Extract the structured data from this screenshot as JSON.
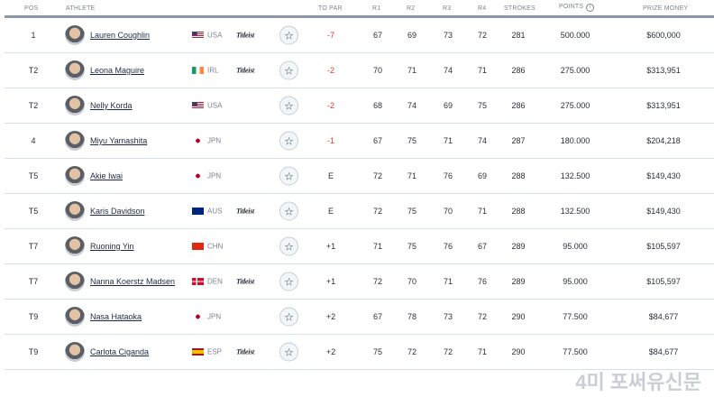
{
  "headers": {
    "pos": "POS",
    "athlete": "ATHLETE",
    "topar": "TO PAR",
    "r1": "R1",
    "r2": "R2",
    "r3": "R3",
    "r4": "R4",
    "strokes": "STROKES",
    "points": "POINTS",
    "prize": "PRIZE MONEY",
    "info_icon": "i"
  },
  "colors": {
    "negative": "#e0342c",
    "divider": "#8d97a6"
  },
  "star_icon": "☆",
  "rows": [
    {
      "pos": "1",
      "name": "Lauren Coughlin",
      "country": "USA",
      "brand": "Titleist",
      "topar": "-7",
      "r1": "67",
      "r2": "69",
      "r3": "73",
      "r4": "72",
      "strokes": "281",
      "points": "500.000",
      "prize": "$600,000"
    },
    {
      "pos": "T2",
      "name": "Leona Maguire",
      "country": "IRL",
      "brand": "Titleist",
      "topar": "-2",
      "r1": "70",
      "r2": "71",
      "r3": "74",
      "r4": "71",
      "strokes": "286",
      "points": "275.000",
      "prize": "$313,951"
    },
    {
      "pos": "T2",
      "name": "Nelly Korda",
      "country": "USA",
      "brand": "",
      "topar": "-2",
      "r1": "68",
      "r2": "74",
      "r3": "69",
      "r4": "75",
      "strokes": "286",
      "points": "275.000",
      "prize": "$313,951"
    },
    {
      "pos": "4",
      "name": "Miyu Yamashita",
      "country": "JPN",
      "brand": "",
      "topar": "-1",
      "r1": "67",
      "r2": "75",
      "r3": "71",
      "r4": "74",
      "strokes": "287",
      "points": "180.000",
      "prize": "$204,218"
    },
    {
      "pos": "T5",
      "name": "Akie Iwai",
      "country": "JPN",
      "brand": "",
      "topar": "E",
      "r1": "72",
      "r2": "71",
      "r3": "76",
      "r4": "69",
      "strokes": "288",
      "points": "132.500",
      "prize": "$149,430"
    },
    {
      "pos": "T5",
      "name": "Karis Davidson",
      "country": "AUS",
      "brand": "Titleist",
      "topar": "E",
      "r1": "72",
      "r2": "75",
      "r3": "70",
      "r4": "71",
      "strokes": "288",
      "points": "132.500",
      "prize": "$149,430"
    },
    {
      "pos": "T7",
      "name": "Ruoning Yin",
      "country": "CHN",
      "brand": "",
      "topar": "+1",
      "r1": "71",
      "r2": "75",
      "r3": "76",
      "r4": "67",
      "strokes": "289",
      "points": "95.000",
      "prize": "$105,597"
    },
    {
      "pos": "T7",
      "name": "Nanna Koerstz Madsen",
      "country": "DEN",
      "brand": "Titleist",
      "topar": "+1",
      "r1": "72",
      "r2": "70",
      "r3": "71",
      "r4": "76",
      "strokes": "289",
      "points": "95.000",
      "prize": "$105,597"
    },
    {
      "pos": "T9",
      "name": "Nasa Hataoka",
      "country": "JPN",
      "brand": "",
      "topar": "+2",
      "r1": "67",
      "r2": "78",
      "r3": "73",
      "r4": "72",
      "strokes": "290",
      "points": "77.500",
      "prize": "$84,677"
    },
    {
      "pos": "T9",
      "name": "Carlota Ciganda",
      "country": "ESP",
      "brand": "Titleist",
      "topar": "+2",
      "r1": "75",
      "r2": "72",
      "r3": "72",
      "r4": "71",
      "strokes": "290",
      "points": "77.500",
      "prize": "$84,677"
    }
  ],
  "watermark": "4미 포써유신문"
}
